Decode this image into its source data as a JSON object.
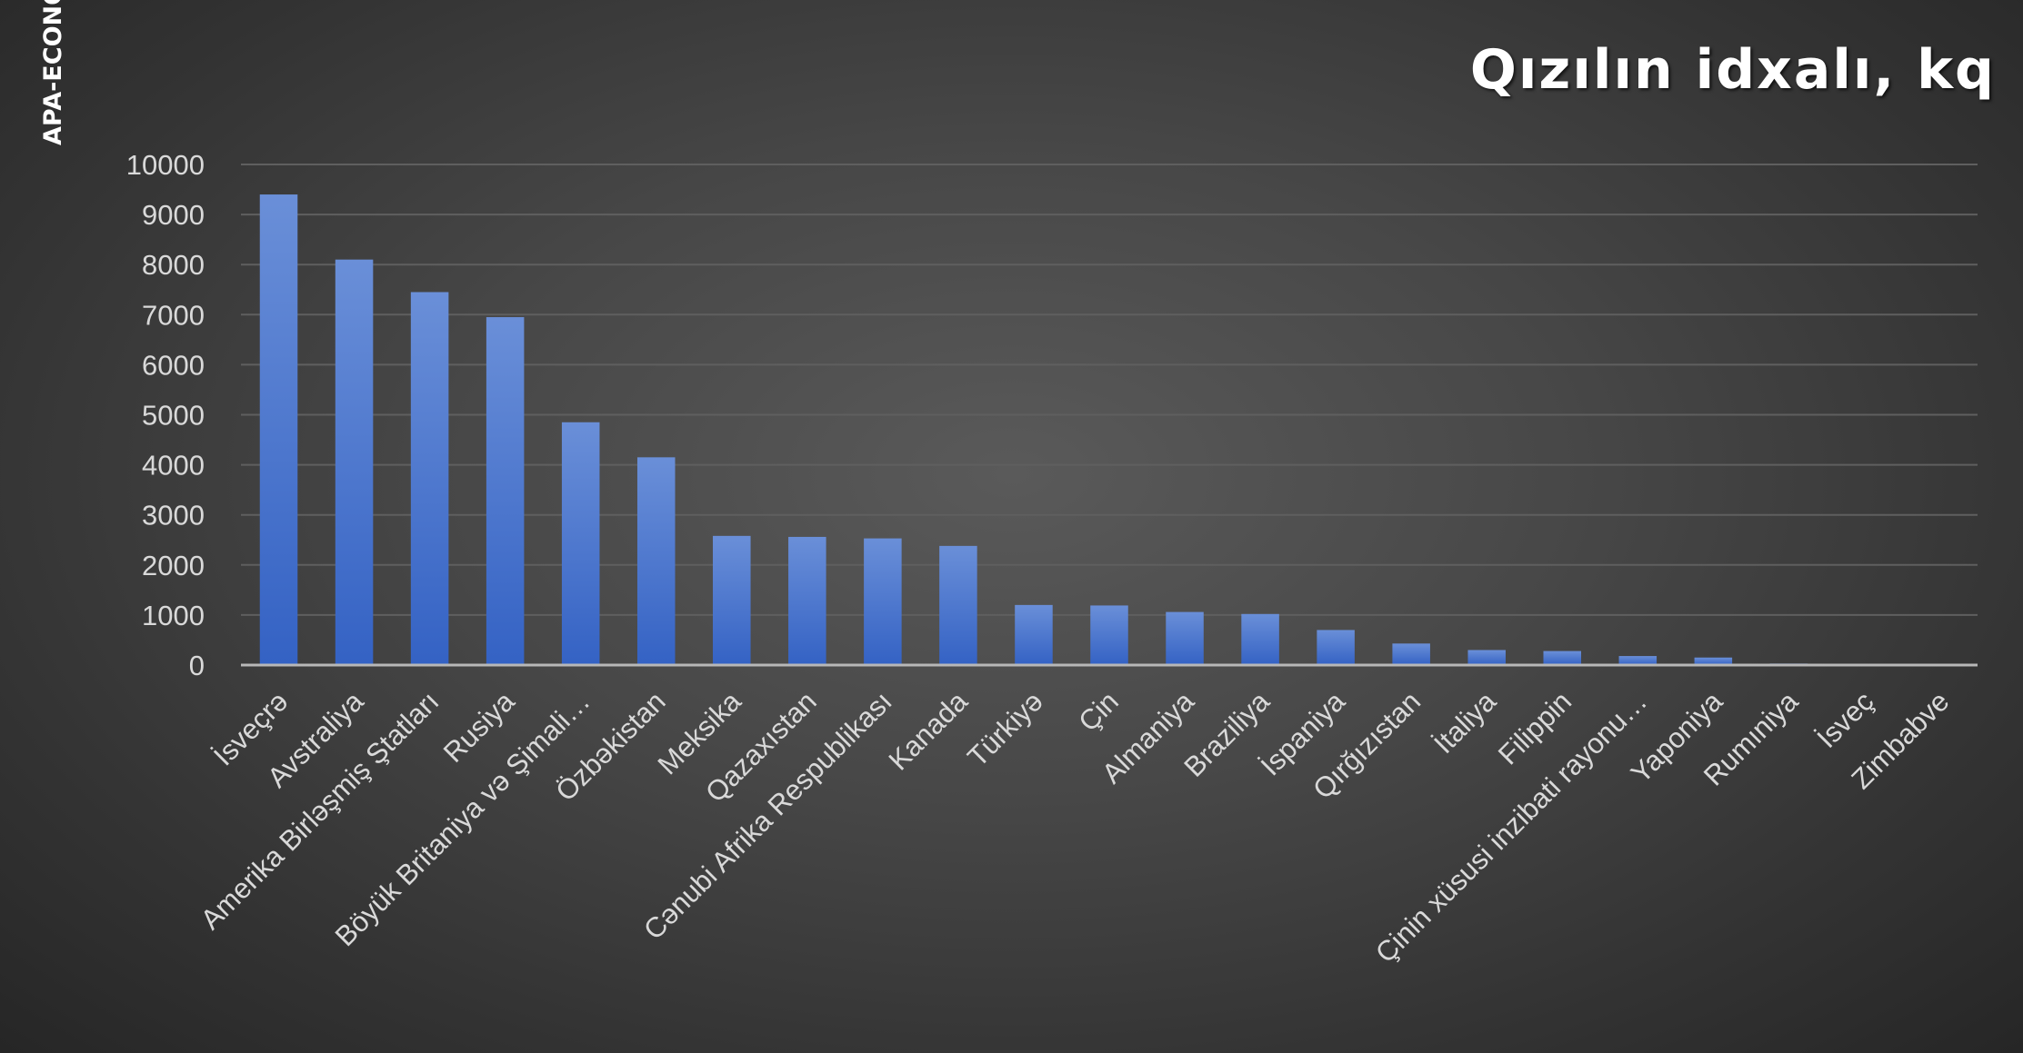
{
  "watermark": "APA-ECONOMICS",
  "chart_data": {
    "type": "bar",
    "title": "Qızılın idxalı, kq",
    "xlabel": "",
    "ylabel": "",
    "ylim": [
      0,
      10000
    ],
    "yticks": [
      0,
      1000,
      2000,
      3000,
      4000,
      5000,
      6000,
      7000,
      8000,
      9000,
      10000
    ],
    "grid": true,
    "legend": "none",
    "colors": {
      "bar_top": "#6a8fd8",
      "bar_bottom": "#3462c4",
      "gridline": "#5f5f5f",
      "axis": "#b8b8b8",
      "text": "#d9d9d9"
    },
    "categories": [
      "İsveçrə",
      "Avstraliya",
      "Amerika Birləşmiş Ştatları",
      "Rusiya",
      "Böyük Britaniya və Şimali…",
      "Özbəkistan",
      "Meksika",
      "Qazaxıstan",
      "Cənubi Afrika Respublikası",
      "Kanada",
      "Türkiyə",
      "Çin",
      "Almaniya",
      "Braziliya",
      "İspaniya",
      "Qırğızıstan",
      "İtaliya",
      "Filippin",
      "Çinin xüsusi inzibati rayonu…",
      "Yaponiya",
      "Rumıniya",
      "İsveç",
      "Zimbabve"
    ],
    "values": [
      9400,
      8100,
      7450,
      6950,
      4850,
      4150,
      2580,
      2560,
      2530,
      2380,
      1200,
      1190,
      1060,
      1020,
      700,
      430,
      300,
      280,
      180,
      150,
      30,
      25,
      15
    ]
  }
}
